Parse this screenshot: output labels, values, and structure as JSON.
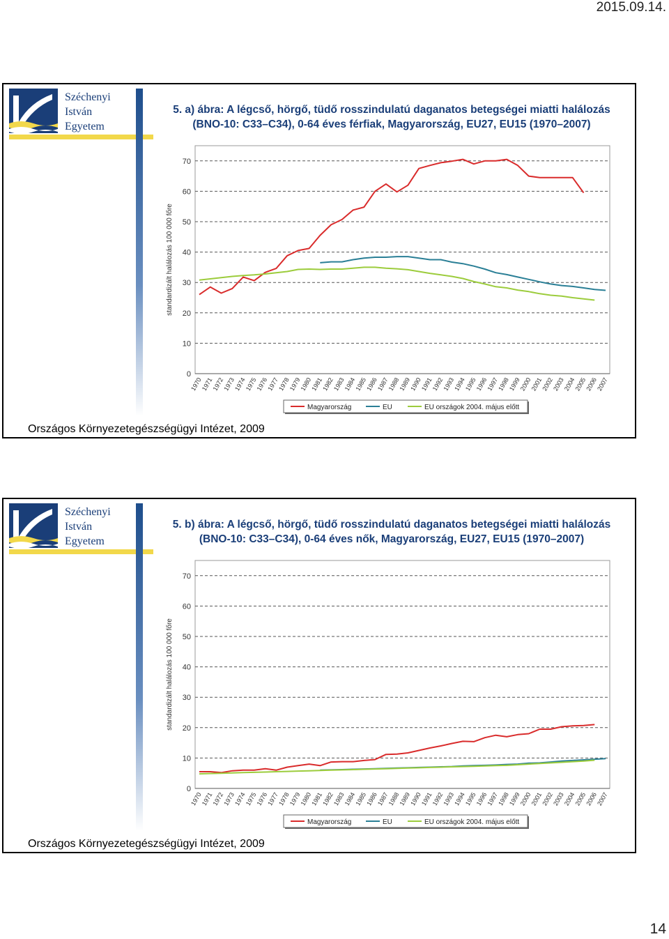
{
  "header": {
    "date": "2015.09.14."
  },
  "footer": {
    "page_number": "14"
  },
  "logo": {
    "line1": "Széchenyi",
    "line2": "István",
    "line3": "Egyetem"
  },
  "source": "Országos Környezetegészségügyi Intézet, 2009",
  "colors": {
    "hungary": "#d92b2b",
    "eu": "#2a7f96",
    "eu15": "#9ccc3c",
    "brand_blue": "#1a3e78",
    "brand_yellow": "#f2d84a"
  },
  "chart_data": [
    {
      "type": "line",
      "title_line1": "5. a) ábra: A légcső, hörgő, tüdő rosszindulatú daganatos betegségei miatti halálozás",
      "title_line2": "(BNO-10: C33–C34), 0-64 éves férfiak, Magyarország, EU27, EU15 (1970–2007)",
      "ylabel": "standardizált halálozás 100 000 főre",
      "ylim": [
        0,
        75
      ],
      "yticks": [
        0,
        10,
        20,
        30,
        40,
        50,
        60,
        70
      ],
      "grid": true,
      "legend_position": "bottom",
      "x": [
        "1970",
        "1971",
        "1972",
        "1973",
        "1974",
        "1975",
        "1976",
        "1977",
        "1978",
        "1979",
        "1980",
        "1981",
        "1982",
        "1983",
        "1984",
        "1985",
        "1986",
        "1987",
        "1988",
        "1989",
        "1990",
        "1991",
        "1992",
        "1993",
        "1994",
        "1995",
        "1996",
        "1997",
        "1998",
        "1999",
        "2000",
        "2001",
        "2002",
        "2003",
        "2004",
        "2005",
        "2006",
        "2007"
      ],
      "series": [
        {
          "name": "Magyarország",
          "color": "#d92b2b",
          "values": [
            26,
            28.5,
            26.5,
            28,
            31.8,
            30.6,
            33.3,
            34.6,
            38.8,
            40.5,
            41.2,
            45.5,
            49,
            50.7,
            53.8,
            54.8,
            60,
            62.4,
            59.8,
            62,
            67.5,
            68.5,
            69.4,
            69.9,
            70.5,
            69,
            70,
            70,
            70.5,
            68.5,
            65,
            64.5,
            64.5,
            64.5,
            64.5,
            59.5,
            null,
            null
          ]
        },
        {
          "name": "EU",
          "color": "#2a7f96",
          "values": [
            null,
            null,
            null,
            null,
            null,
            null,
            null,
            null,
            null,
            null,
            null,
            36.5,
            36.8,
            36.8,
            37.5,
            38,
            38.3,
            38.3,
            38.5,
            38.5,
            38.0,
            37.5,
            37.5,
            36.7,
            36.2,
            35.4,
            34.4,
            33.2,
            32.6,
            31.8,
            31,
            30.2,
            29.5,
            29,
            28.7,
            28.2,
            27.7,
            27.4
          ]
        },
        {
          "name": "EU országok 2004. május előtt",
          "color": "#9ccc3c",
          "values": [
            30.8,
            31.2,
            31.6,
            32,
            32.3,
            32.5,
            32.8,
            33.2,
            33.6,
            34.3,
            34.4,
            34.3,
            34.4,
            34.4,
            34.7,
            35,
            35,
            34.7,
            34.5,
            34.2,
            33.6,
            33,
            32.5,
            32,
            31.3,
            30.3,
            29.5,
            28.6,
            28.2,
            27.5,
            27,
            26.3,
            25.8,
            25.5,
            25,
            24.6,
            24.2,
            null
          ]
        }
      ]
    },
    {
      "type": "line",
      "title_line1": "5. b) ábra: A légcső, hörgő, tüdő rosszindulatú daganatos betegségei miatti halálozás",
      "title_line2": "(BNO-10: C33–C34), 0-64 éves nők, Magyarország, EU27, EU15 (1970–2007)",
      "ylabel": "standardizált halálozás 100 000 főre",
      "ylim": [
        0,
        75
      ],
      "yticks": [
        0,
        10,
        20,
        30,
        40,
        50,
        60,
        70
      ],
      "grid": true,
      "legend_position": "bottom",
      "x": [
        "1970",
        "1971",
        "1972",
        "1973",
        "1974",
        "1975",
        "1976",
        "1977",
        "1978",
        "1979",
        "1980",
        "1981",
        "1982",
        "1983",
        "1984",
        "1985",
        "1986",
        "1987",
        "1988",
        "1989",
        "1990",
        "1991",
        "1992",
        "1993",
        "1994",
        "1995",
        "1996",
        "1997",
        "1998",
        "1999",
        "2000",
        "2001",
        "2002",
        "2003",
        "2004",
        "2005",
        "2006",
        "2007"
      ],
      "series": [
        {
          "name": "Magyarország",
          "color": "#d92b2b",
          "values": [
            5.5,
            5.5,
            5.2,
            5.8,
            6,
            6,
            6.5,
            6,
            7,
            7.5,
            8,
            7.5,
            8.7,
            8.8,
            8.8,
            9.2,
            9.5,
            11.2,
            11.3,
            11.7,
            12.5,
            13.3,
            14,
            14.8,
            15.5,
            15.4,
            16.7,
            17.5,
            17,
            17.7,
            18,
            19.5,
            19.5,
            20.3,
            20.6,
            20.7,
            21,
            null
          ]
        },
        {
          "name": "EU",
          "color": "#2a7f96",
          "values": [
            null,
            null,
            null,
            null,
            null,
            null,
            null,
            null,
            null,
            null,
            null,
            6,
            6.1,
            6.2,
            6.3,
            6.4,
            6.5,
            6.6,
            6.7,
            6.8,
            6.9,
            7,
            7.1,
            7.2,
            7.4,
            7.5,
            7.6,
            7.7,
            7.9,
            8,
            8.3,
            8.4,
            8.7,
            9,
            9.2,
            9.4,
            9.6,
            9.8
          ]
        },
        {
          "name": "EU országok 2004. május előtt",
          "color": "#9ccc3c",
          "values": [
            4.8,
            4.9,
            5,
            5.1,
            5.2,
            5.3,
            5.4,
            5.5,
            5.6,
            5.7,
            5.8,
            5.9,
            6,
            6.1,
            6.2,
            6.3,
            6.4,
            6.5,
            6.6,
            6.7,
            6.8,
            6.9,
            7,
            7.1,
            7.2,
            7.3,
            7.4,
            7.5,
            7.6,
            7.8,
            8,
            8.2,
            8.4,
            8.6,
            8.8,
            9,
            9.3,
            null
          ]
        }
      ]
    }
  ]
}
